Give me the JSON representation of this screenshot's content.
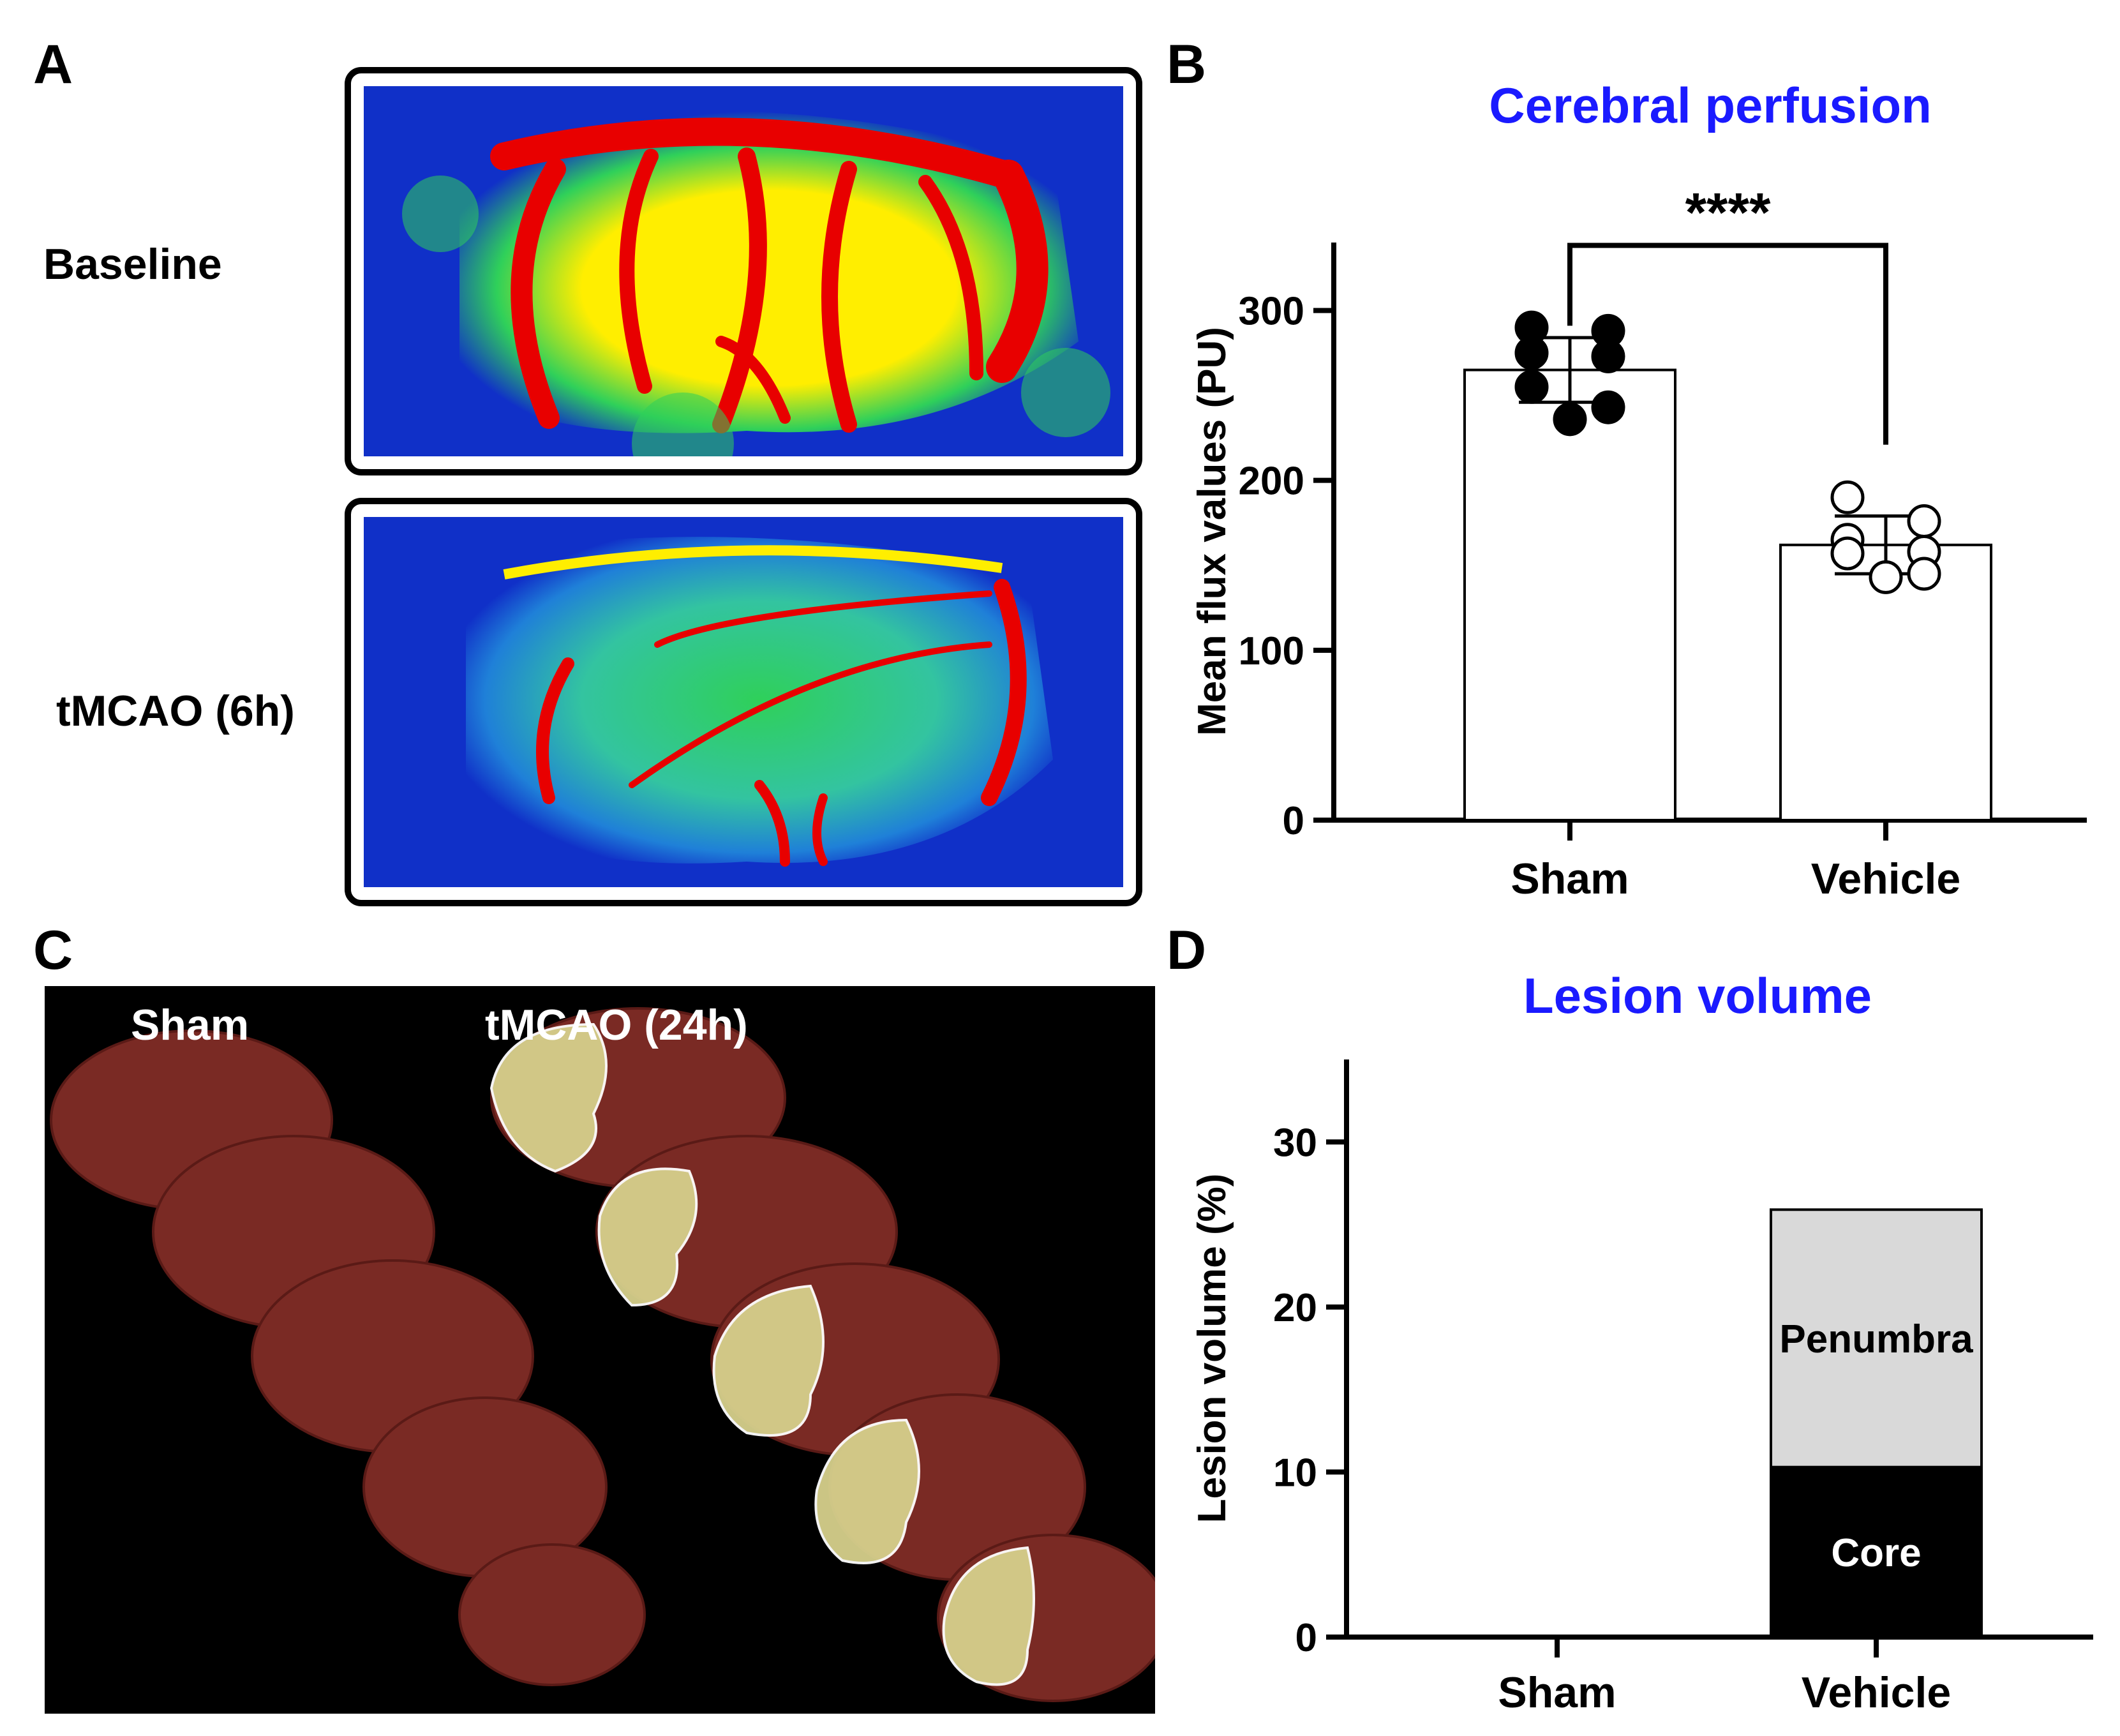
{
  "panels": {
    "A": {
      "letter": "A",
      "rows": [
        {
          "label": "Baseline",
          "condition": "baseline"
        },
        {
          "label": "tMCAO (6h)",
          "condition": "ischemia"
        }
      ]
    },
    "B": {
      "letter": "B"
    },
    "C": {
      "letter": "C",
      "groups": [
        {
          "label": "Sham"
        },
        {
          "label": "tMCAO (24h)"
        }
      ]
    },
    "D": {
      "letter": "D"
    }
  },
  "colors": {
    "title": "#1a1aff",
    "flux_low": "#1030c8",
    "flux_mid": "#2fd05a",
    "flux_high_mid": "#ffee00",
    "flux_high": "#e80000",
    "penumbra": "#d9d9d9",
    "core": "#000000",
    "tissue": "#7a2a24",
    "lesion": "#d6d08c"
  },
  "chart_data": [
    {
      "panel": "B",
      "type": "bar",
      "title": "Cerebral perfusion",
      "xlabel": "",
      "ylabel": "Mean flux values (PU)",
      "categories": [
        "Sham",
        "Vehicle"
      ],
      "values": [
        265,
        162
      ],
      "error": [
        19,
        17
      ],
      "ylim": [
        0,
        340
      ],
      "yticks": [
        0,
        100,
        200,
        300
      ],
      "points": [
        {
          "category": "Sham",
          "filled": true,
          "values": [
            290,
            288,
            275,
            273,
            255,
            243,
            236
          ]
        },
        {
          "category": "Vehicle",
          "filled": false,
          "values": [
            190,
            176,
            165,
            158,
            157,
            145,
            143
          ]
        }
      ],
      "significance": {
        "label": "****",
        "between": [
          "Sham",
          "Vehicle"
        ]
      },
      "grid": false,
      "legend": "none"
    },
    {
      "panel": "D",
      "type": "bar",
      "stacked": true,
      "title": "Lesion volume",
      "xlabel": "",
      "ylabel": "Lesion volume (%)",
      "categories": [
        "Sham",
        "Vehicle"
      ],
      "series": [
        {
          "name": "Core",
          "values": [
            0,
            10.3
          ]
        },
        {
          "name": "Penumbra",
          "values": [
            0,
            15.6
          ]
        }
      ],
      "ylim": [
        0,
        35
      ],
      "yticks": [
        0,
        10,
        20,
        30
      ],
      "grid": false,
      "legend": "none"
    }
  ]
}
